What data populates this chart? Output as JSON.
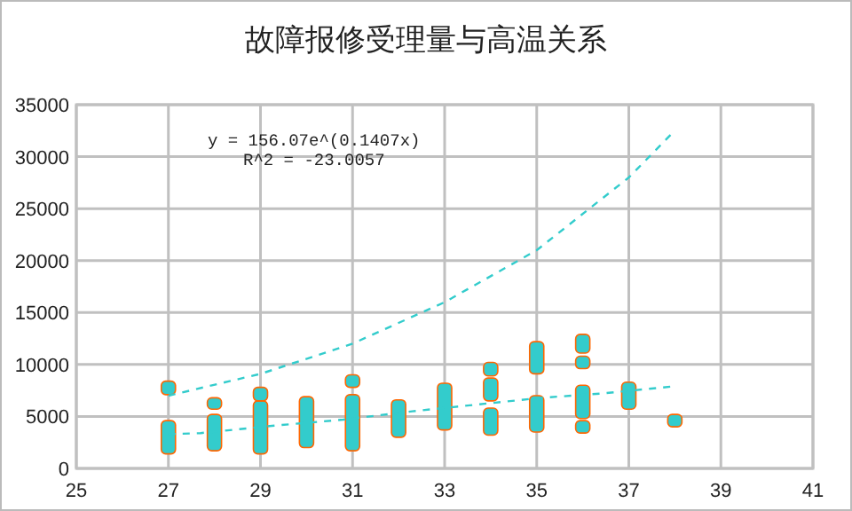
{
  "chart_data": {
    "type": "bar",
    "title": "故障报修受理量与高温关系",
    "xlim": [
      25,
      41
    ],
    "xticks": [
      25,
      27,
      29,
      31,
      33,
      35,
      37,
      39,
      41
    ],
    "ylim": [
      0,
      35000
    ],
    "yticks": [
      0,
      5000,
      10000,
      15000,
      20000,
      25000,
      30000,
      35000
    ],
    "grid": true,
    "annotations": [
      "y = 156.07e^(0.1407x)",
      "R^2 = -23.0057"
    ],
    "series": [
      {
        "color": "#33cccc",
        "x": [
          27,
          28,
          29,
          30,
          31,
          32,
          33,
          34,
          35,
          36,
          37,
          38
        ],
        "base": [
          1400,
          1700,
          1400,
          2000,
          1700,
          3000,
          3700,
          3200,
          3500,
          3400,
          5700,
          4000
        ],
        "values": [
          3200,
          3500,
          5100,
          4900,
          5400,
          3600,
          4500,
          2600,
          3500,
          1200,
          2600,
          1200
        ]
      },
      {
        "color": "#33cccc",
        "x": [
          27,
          28,
          29,
          31,
          34,
          35,
          36
        ],
        "base": [
          7100,
          5700,
          6500,
          7800,
          6500,
          9100,
          4800
        ],
        "values": [
          1300,
          1100,
          1300,
          1200,
          2200,
          3100,
          3200
        ]
      },
      {
        "color": "#33cccc",
        "x": [
          34,
          36
        ],
        "base": [
          8900,
          9600
        ],
        "values": [
          1300,
          1200
        ]
      },
      {
        "color": "#33cccc",
        "x": [
          36
        ],
        "base": [
          11100
        ],
        "values": [
          1800
        ]
      },
      {
        "type": "line",
        "color": "#33cccc",
        "line_style": "dashed",
        "marker": "none",
        "x": [
          27,
          29,
          31,
          33,
          35,
          37,
          38
        ],
        "values": [
          7000,
          9100,
          12000,
          16000,
          21000,
          28000,
          32500
        ]
      },
      {
        "type": "line",
        "color": "#33cccc",
        "line_style": "dashed",
        "marker": "none",
        "x": [
          27,
          27.7,
          29.25,
          30.8,
          32.3,
          33.6,
          35.1,
          36.4,
          38
        ],
        "values": [
          3300,
          3400,
          4100,
          4700,
          5500,
          6100,
          6800,
          7200,
          7900
        ]
      }
    ]
  }
}
